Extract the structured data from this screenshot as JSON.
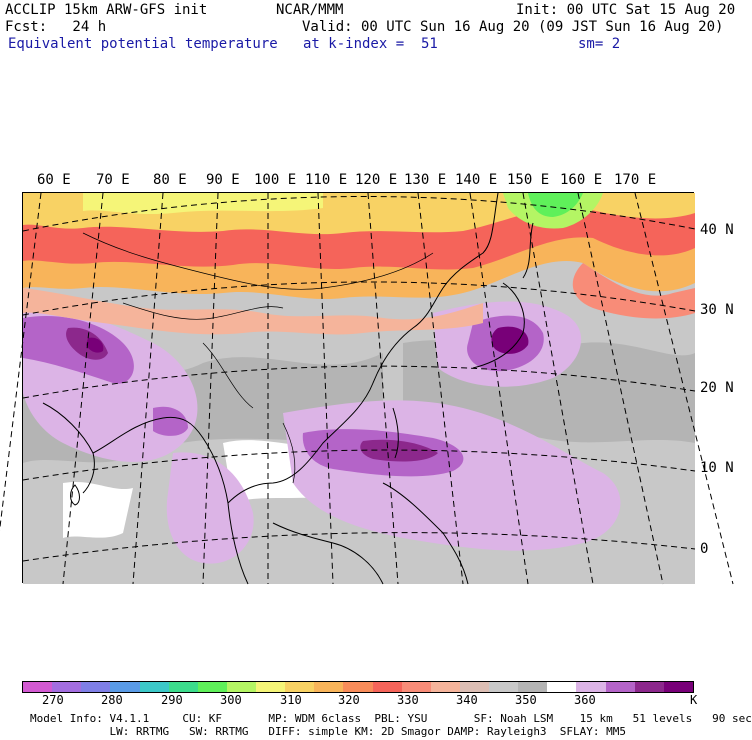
{
  "header": {
    "left_line1": "ACCLIP 15km ARW-GFS init",
    "center_line1": "NCAR/MMM",
    "right_line1": "Init: 00 UTC Sat 15 Aug 20",
    "left_line2": "Fcst:   24 h",
    "right_line2": "Valid: 00 UTC Sun 16 Aug 20 (09 JST Sun 16 Aug 20)",
    "field_name": "Equivalent potential temperature",
    "level": "at k-index =  51",
    "smoothing": "sm= 2"
  },
  "map": {
    "lon_labels": [
      "60 E",
      "70 E",
      "80 E",
      "90 E",
      "100 E",
      "110 E",
      "120 E",
      "130 E",
      "140 E",
      "150 E",
      "160 E",
      "170 E"
    ],
    "lat_labels": [
      "40 N",
      "30 N",
      "20 N",
      "10 N",
      "0"
    ],
    "region": "Asia / Western Pacific"
  },
  "colorbar": {
    "unit": "K",
    "tick_labels": [
      "270",
      "280",
      "290",
      "300",
      "310",
      "320",
      "330",
      "340",
      "350",
      "360"
    ],
    "colors": [
      "#d35ad2",
      "#a36ee0",
      "#7f7fe6",
      "#5a9be6",
      "#3cc8c8",
      "#3cdc8c",
      "#5ff05a",
      "#b4f564",
      "#f5f578",
      "#f8d264",
      "#f8b45a",
      "#f88c5a",
      "#f5645a",
      "#f88c78",
      "#f5b49b",
      "#dcbeb4",
      "#c8c8c8",
      "#b4b4b4",
      "#ffffff",
      "#dcb4e6",
      "#b464c8",
      "#8c288c",
      "#780078"
    ]
  },
  "footer": {
    "line1": "Model Info: V4.1.1     CU: KF       MP: WDM 6class  PBL: YSU       SF: Noah LSM    15 km   51 levels   90 sec",
    "line2": "            LW: RRTMG   SW: RRTMG   DIFF: simple KM: 2D Smagor DAMP: Rayleigh3  SFLAY: MM5"
  }
}
